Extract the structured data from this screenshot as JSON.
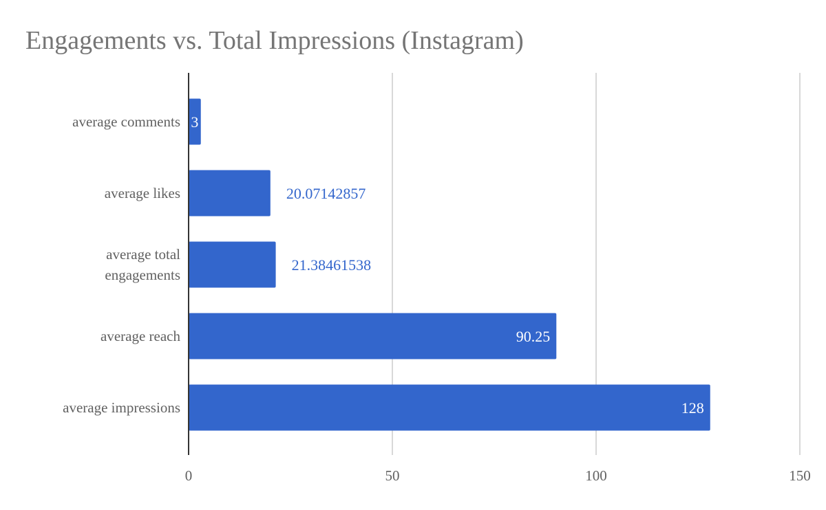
{
  "chart_data": {
    "type": "bar",
    "orientation": "horizontal",
    "title": "Engagements vs. Total Impressions (Instagram)",
    "categories": [
      "average comments",
      "average likes",
      "average total engagements",
      "average reach",
      "average impressions"
    ],
    "values": [
      3,
      20.07142857,
      21.38461538,
      90.25,
      128
    ],
    "data_labels": [
      "3",
      "20.07142857",
      "21.38461538",
      "90.25",
      "128"
    ],
    "xlim": [
      0,
      150
    ],
    "xticks": [
      "0",
      "50",
      "100",
      "150"
    ],
    "grid": true,
    "legend": "none",
    "bar_color": "#3366cc",
    "label_inside_color": "#ffffff",
    "label_outside_color": "#3366cc"
  }
}
